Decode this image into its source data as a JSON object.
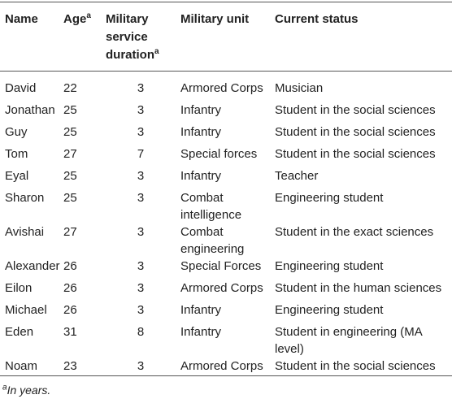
{
  "table": {
    "header": [
      {
        "text": "Name"
      },
      {
        "text": "Age",
        "note": "a"
      },
      {
        "text": "Military service duration",
        "note": "a"
      },
      {
        "text": "Military unit"
      },
      {
        "text": "Current status"
      }
    ],
    "rows": [
      [
        "David",
        22,
        3,
        "Armored Corps",
        "Musician"
      ],
      [
        "Jonathan",
        25,
        3,
        "Infantry",
        "Student in the social sciences"
      ],
      [
        "Guy",
        25,
        3,
        "Infantry",
        "Student in the social sciences"
      ],
      [
        "Tom",
        27,
        7,
        "Special forces",
        "Student in the social sciences"
      ],
      [
        "Eyal",
        25,
        3,
        "Infantry",
        "Teacher"
      ],
      [
        "Sharon",
        25,
        3,
        "Combat intelligence",
        "Engineering student"
      ],
      [
        "Avishai",
        27,
        3,
        "Combat engineering",
        "Student in the exact sciences"
      ],
      [
        "Alexander",
        26,
        3,
        "Special Forces",
        "Engineering student"
      ],
      [
        "Eilon",
        26,
        3,
        "Armored Corps",
        "Student in the human sciences"
      ],
      [
        "Michael",
        26,
        3,
        "Infantry",
        "Engineering student"
      ],
      [
        "Eden",
        31,
        8,
        "Infantry",
        "Student in engineering (MA level)"
      ],
      [
        "Noam",
        23,
        3,
        "Armored Corps",
        "Student in the social sciences"
      ]
    ],
    "footnote": {
      "note": "a",
      "text": "In years."
    }
  }
}
